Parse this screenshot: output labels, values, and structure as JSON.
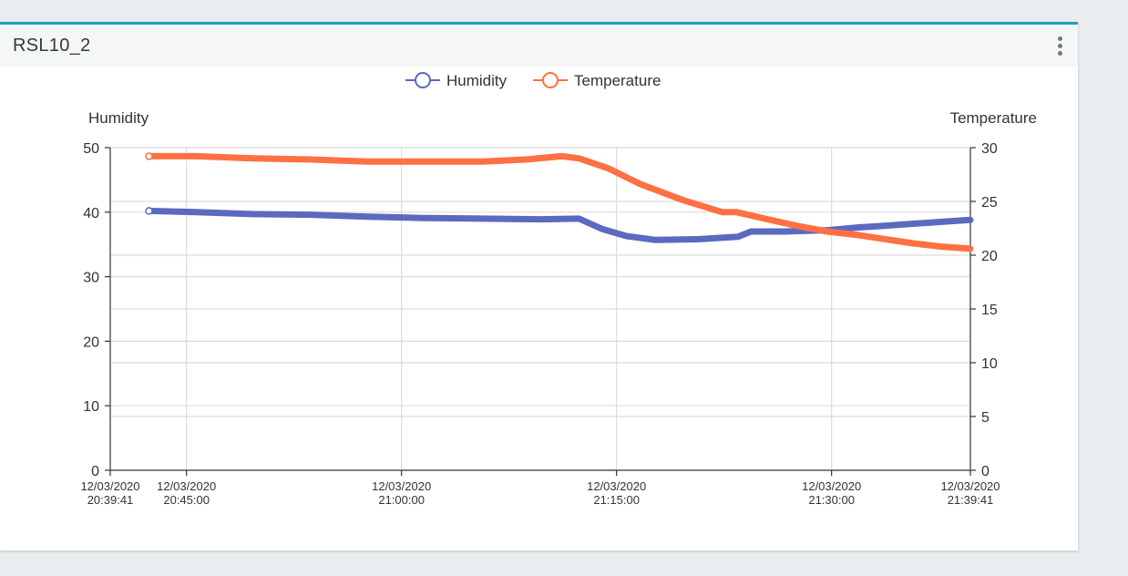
{
  "panel": {
    "title": "RSL10_2"
  },
  "colors": {
    "humidity": "#5b6abf",
    "temperature": "#ff7043",
    "accent": "#1aa3b8"
  },
  "chart_data": {
    "type": "line",
    "legend": [
      "Humidity",
      "Temperature"
    ],
    "legend_position": "top-center",
    "grid": true,
    "y_left": {
      "label": "Humidity",
      "lim": [
        0,
        50
      ],
      "ticks": [
        0,
        10,
        20,
        30,
        40,
        50
      ]
    },
    "y_right": {
      "label": "Temperature",
      "lim": [
        0,
        30
      ],
      "ticks": [
        0,
        5,
        10,
        15,
        20,
        25,
        30
      ]
    },
    "x_ticks": [
      {
        "t": 0,
        "line1": "12/03/2020",
        "line2": "20:39:41"
      },
      {
        "t": 5.3167,
        "line1": "12/03/2020",
        "line2": "20:45:00"
      },
      {
        "t": 20.3167,
        "line1": "12/03/2020",
        "line2": "21:00:00"
      },
      {
        "t": 35.3167,
        "line1": "12/03/2020",
        "line2": "21:15:00"
      },
      {
        "t": 50.3167,
        "line1": "12/03/2020",
        "line2": "21:30:00"
      },
      {
        "t": 60,
        "line1": "12/03/2020",
        "line2": "21:39:41"
      }
    ],
    "series": [
      {
        "name": "Humidity",
        "axis": "left",
        "points": [
          [
            2.7,
            40.2
          ],
          [
            6,
            40.0
          ],
          [
            10,
            39.7
          ],
          [
            14,
            39.6
          ],
          [
            18,
            39.3
          ],
          [
            22,
            39.1
          ],
          [
            26,
            39.0
          ],
          [
            30,
            38.9
          ],
          [
            32.7,
            39.0
          ],
          [
            34.3,
            37.4
          ],
          [
            36,
            36.3
          ],
          [
            38,
            35.7
          ],
          [
            41,
            35.8
          ],
          [
            43.8,
            36.2
          ],
          [
            44.7,
            37.0
          ],
          [
            47,
            37.0
          ],
          [
            50,
            37.2
          ],
          [
            52,
            37.6
          ],
          [
            54,
            37.9
          ],
          [
            56,
            38.2
          ],
          [
            58,
            38.5
          ],
          [
            60,
            38.8
          ]
        ]
      },
      {
        "name": "Temperature",
        "axis": "right",
        "points": [
          [
            2.7,
            29.2
          ],
          [
            6,
            29.2
          ],
          [
            10,
            29.0
          ],
          [
            14,
            28.9
          ],
          [
            18,
            28.7
          ],
          [
            22,
            28.7
          ],
          [
            26,
            28.7
          ],
          [
            29,
            28.9
          ],
          [
            31.5,
            29.2
          ],
          [
            32.7,
            29.0
          ],
          [
            34.7,
            28.1
          ],
          [
            37,
            26.6
          ],
          [
            40,
            25.1
          ],
          [
            42.7,
            24.0
          ],
          [
            43.7,
            24.0
          ],
          [
            46,
            23.3
          ],
          [
            48,
            22.7
          ],
          [
            50,
            22.2
          ],
          [
            52,
            21.9
          ],
          [
            54,
            21.5
          ],
          [
            56,
            21.1
          ],
          [
            58,
            20.8
          ],
          [
            60,
            20.6
          ]
        ]
      }
    ]
  }
}
